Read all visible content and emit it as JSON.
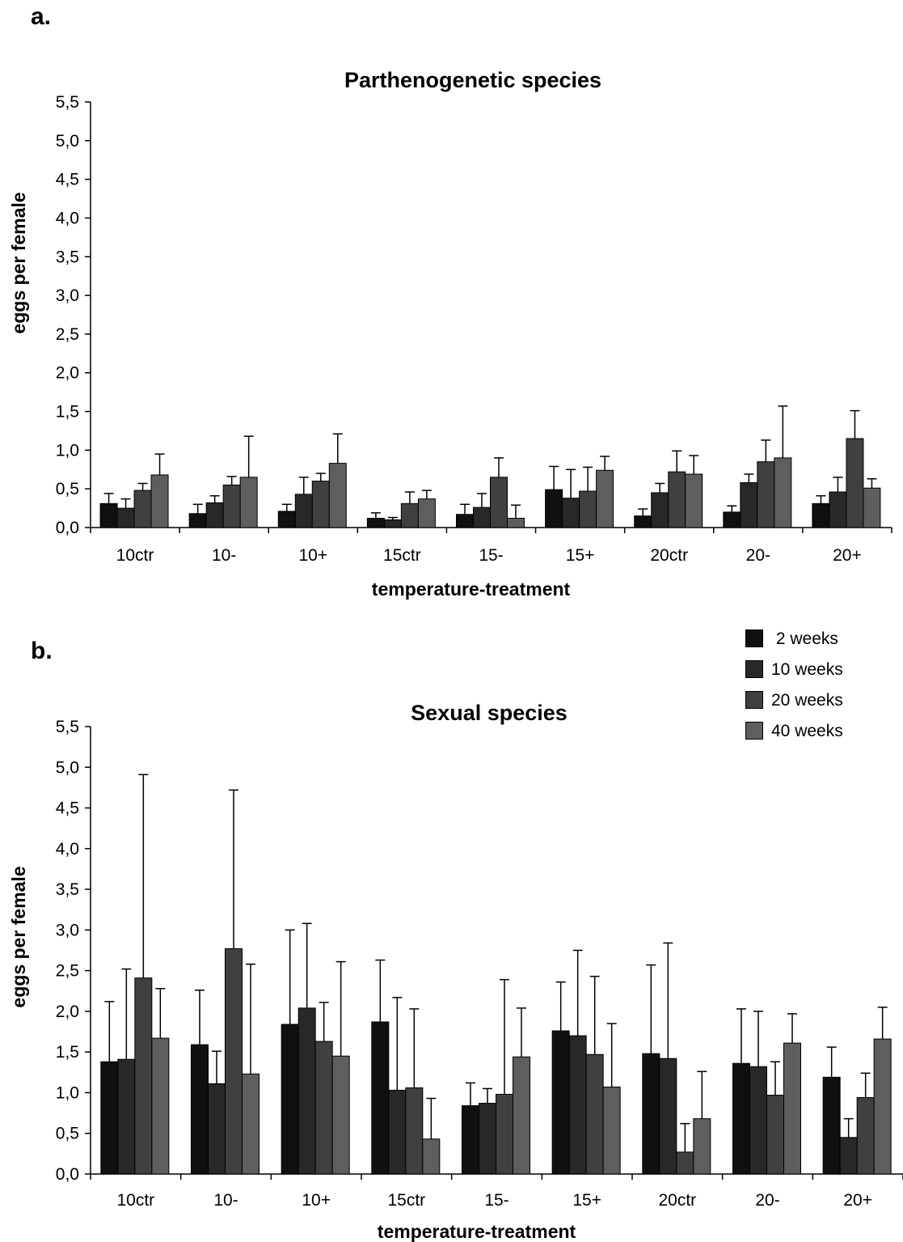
{
  "figure": {
    "panel_a_letter": "a.",
    "panel_b_letter": "b."
  },
  "legend": {
    "items": [
      {
        "label": " 2 weeks",
        "color": "#101010"
      },
      {
        "label": "10 weeks",
        "color": "#282828"
      },
      {
        "label": "20 weeks",
        "color": "#404040"
      },
      {
        "label": "40 weeks",
        "color": "#5e5e5e"
      }
    ]
  },
  "chart_data": [
    {
      "type": "bar",
      "title": "Parthenogenetic species",
      "xlabel": "temperature-treatment",
      "ylabel": "eggs per female",
      "ylim": [
        0,
        5.5
      ],
      "yticks": [
        "0,0",
        "0,5",
        "1,0",
        "1,5",
        "2,0",
        "2,5",
        "3,0",
        "3,5",
        "4,0",
        "4,5",
        "5,0",
        "5,5"
      ],
      "categories": [
        "10ctr",
        "10-",
        "10+",
        "15ctr",
        "15-",
        "15+",
        "20ctr",
        "20-",
        "20+"
      ],
      "grid": false,
      "series": [
        {
          "name": "2 weeks",
          "values": [
            0.31,
            0.18,
            0.21,
            0.12,
            0.17,
            0.49,
            0.15,
            0.2,
            0.31
          ],
          "errors": [
            0.13,
            0.12,
            0.09,
            0.07,
            0.13,
            0.3,
            0.09,
            0.08,
            0.1
          ]
        },
        {
          "name": "10 weeks",
          "values": [
            0.25,
            0.32,
            0.43,
            0.1,
            0.26,
            0.38,
            0.45,
            0.58,
            0.46
          ],
          "errors": [
            0.12,
            0.09,
            0.22,
            0.03,
            0.18,
            0.37,
            0.12,
            0.11,
            0.19
          ]
        },
        {
          "name": "20 weeks",
          "values": [
            0.48,
            0.55,
            0.6,
            0.31,
            0.65,
            0.47,
            0.72,
            0.85,
            1.15
          ],
          "errors": [
            0.09,
            0.11,
            0.1,
            0.15,
            0.25,
            0.31,
            0.27,
            0.28,
            0.36
          ]
        },
        {
          "name": "40 weeks",
          "values": [
            0.68,
            0.65,
            0.83,
            0.37,
            0.12,
            0.74,
            0.69,
            0.9,
            0.51
          ],
          "errors": [
            0.27,
            0.53,
            0.38,
            0.11,
            0.17,
            0.18,
            0.24,
            0.67,
            0.12
          ]
        }
      ]
    },
    {
      "type": "bar",
      "title": "Sexual species",
      "xlabel": "temperature-treatment",
      "ylabel": "eggs per female",
      "ylim": [
        0,
        5.5
      ],
      "yticks": [
        "0,0",
        "0,5",
        "1,0",
        "1,5",
        "2,0",
        "2,5",
        "3,0",
        "3,5",
        "4,0",
        "4,5",
        "5,0",
        "5,5"
      ],
      "categories": [
        "10ctr",
        "10-",
        "10+",
        "15ctr",
        "15-",
        "15+",
        "20ctr",
        "20-",
        "20+"
      ],
      "grid": false,
      "series": [
        {
          "name": "2 weeks",
          "values": [
            1.38,
            1.59,
            1.84,
            1.87,
            0.84,
            1.76,
            1.48,
            1.36,
            1.19
          ],
          "errors": [
            0.74,
            0.67,
            1.16,
            0.76,
            0.28,
            0.6,
            1.09,
            0.67,
            0.37
          ]
        },
        {
          "name": "10 weeks",
          "values": [
            1.41,
            1.11,
            2.04,
            1.03,
            0.87,
            1.7,
            1.42,
            1.32,
            0.45
          ],
          "errors": [
            1.11,
            0.4,
            1.04,
            1.14,
            0.18,
            1.05,
            1.42,
            0.68,
            0.23
          ]
        },
        {
          "name": "20 weeks",
          "values": [
            2.41,
            2.77,
            1.63,
            1.06,
            0.98,
            1.47,
            0.27,
            0.97,
            0.94
          ],
          "errors": [
            2.5,
            1.95,
            0.48,
            0.97,
            1.41,
            0.96,
            0.35,
            0.41,
            0.3
          ]
        },
        {
          "name": "40 weeks",
          "values": [
            1.67,
            1.23,
            1.45,
            0.43,
            1.44,
            1.07,
            0.68,
            1.61,
            1.66
          ],
          "errors": [
            0.61,
            1.35,
            1.16,
            0.5,
            0.6,
            0.78,
            0.58,
            0.36,
            0.39
          ]
        }
      ]
    }
  ]
}
